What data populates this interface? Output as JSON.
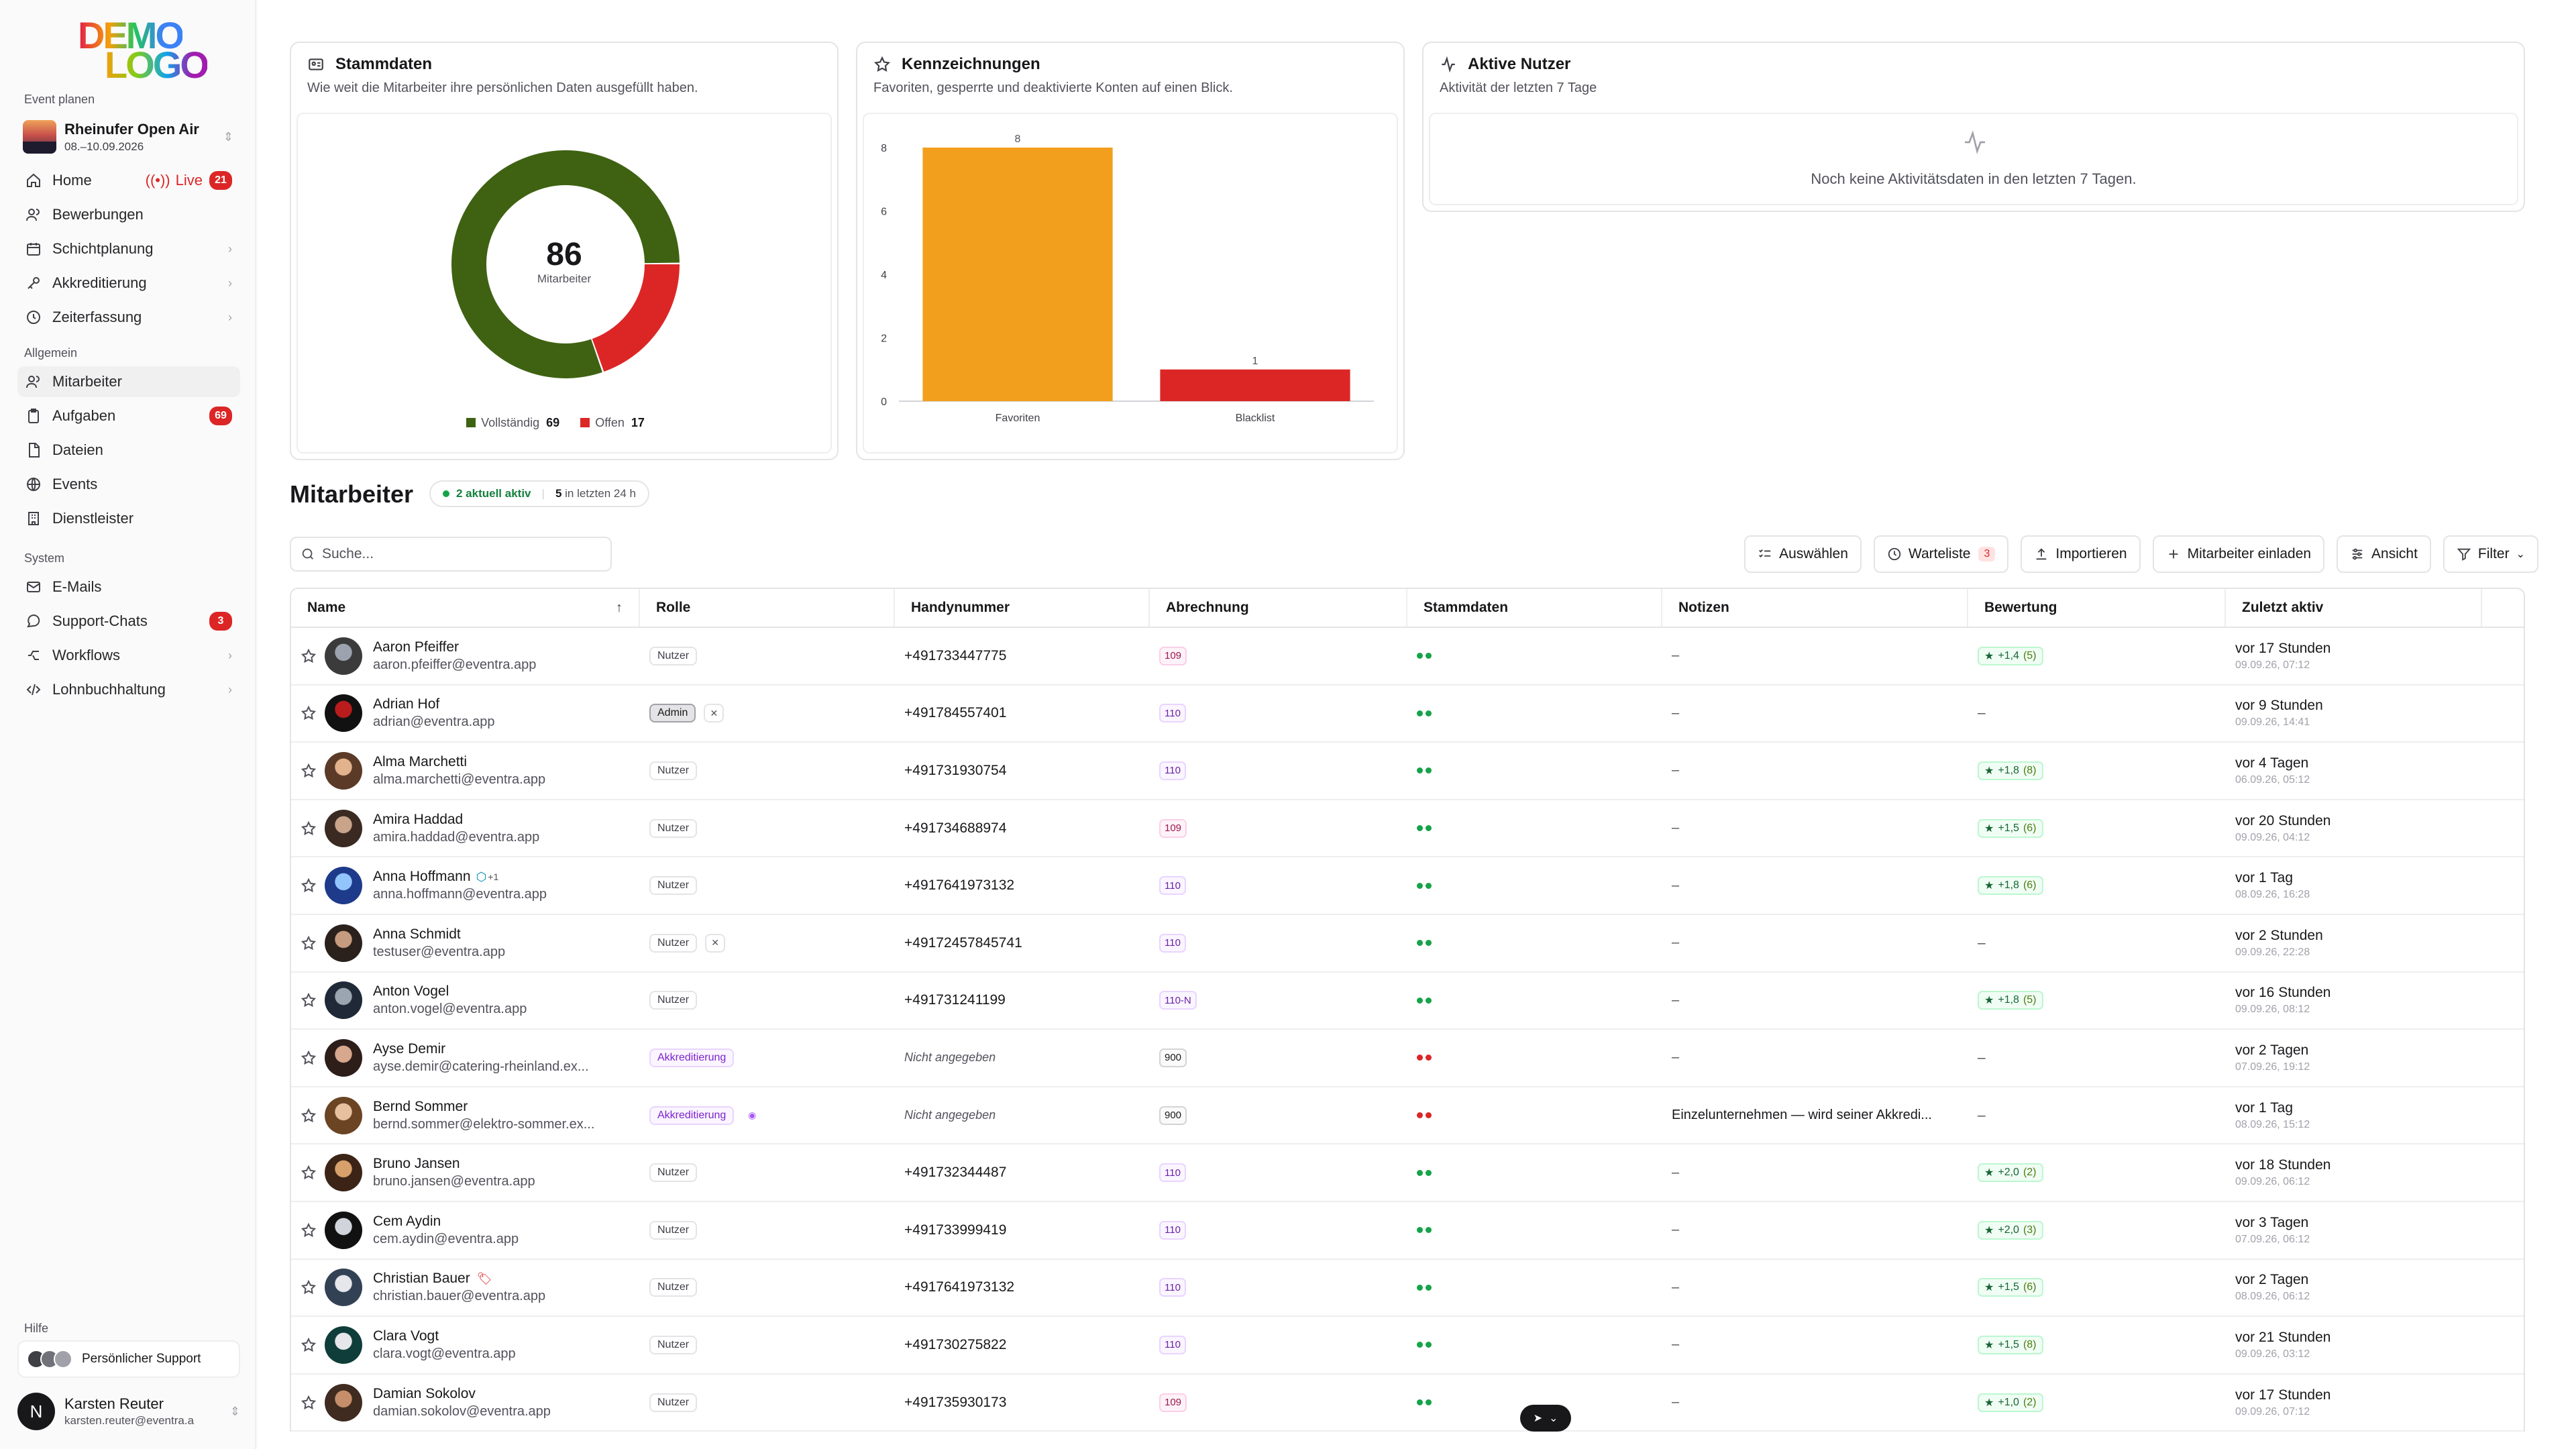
{
  "sidebar": {
    "logo_line1": "DEMO",
    "logo_line2": "LOGO",
    "section_event": "Event planen",
    "event": {
      "name": "Rheinufer Open Air",
      "date": "08.–10.09.2026"
    },
    "nav_top": [
      {
        "label": "Home",
        "icon": "home-icon",
        "live": "Live",
        "badge": "21"
      },
      {
        "label": "Bewerbungen",
        "icon": "users-icon"
      },
      {
        "label": "Schichtplanung",
        "icon": "calendar-icon",
        "chevron": true
      },
      {
        "label": "Akkreditierung",
        "icon": "key-icon",
        "chevron": true
      },
      {
        "label": "Zeiterfassung",
        "icon": "clock-icon",
        "chevron": true
      }
    ],
    "section_general": "Allgemein",
    "nav_general": [
      {
        "label": "Mitarbeiter",
        "icon": "users-icon",
        "active": true
      },
      {
        "label": "Aufgaben",
        "icon": "clipboard-icon",
        "badge": "69"
      },
      {
        "label": "Dateien",
        "icon": "file-icon"
      },
      {
        "label": "Events",
        "icon": "globe-icon"
      },
      {
        "label": "Dienstleister",
        "icon": "building-icon"
      }
    ],
    "section_system": "System",
    "nav_system": [
      {
        "label": "E-Mails",
        "icon": "mail-icon"
      },
      {
        "label": "Support-Chats",
        "icon": "chat-icon",
        "badge": "3"
      },
      {
        "label": "Workflows",
        "icon": "workflow-icon",
        "chevron": true
      },
      {
        "label": "Lohnbuchhaltung",
        "icon": "code-icon",
        "chevron": true
      }
    ],
    "section_help": "Hilfe",
    "support_label": "Persönlicher Support",
    "user": {
      "initial": "N",
      "name": "Karsten Reuter",
      "email": "karsten.reuter@eventra.a"
    }
  },
  "cards": {
    "stammdaten": {
      "title": "Stammdaten",
      "subtitle": "Wie weit die Mitarbeiter ihre persönlichen Daten ausgefüllt haben.",
      "total": "86",
      "total_label": "Mitarbeiter",
      "legend": [
        {
          "label": "Vollständig",
          "value": "69",
          "color": "#3f6212"
        },
        {
          "label": "Offen",
          "value": "17",
          "color": "#dc2626"
        }
      ]
    },
    "kennzeichnungen": {
      "title": "Kennzeichnungen",
      "subtitle": "Favoriten, gesperrte und deaktivierte Konten auf einen Blick."
    },
    "aktive": {
      "title": "Aktive Nutzer",
      "subtitle": "Aktivität der letzten 7 Tage",
      "empty": "Noch keine Aktivitätsdaten in den letzten 7 Tagen."
    }
  },
  "chart_data": [
    {
      "type": "pie",
      "categories": [
        "Vollständig",
        "Offen"
      ],
      "values": [
        69,
        17
      ],
      "colors": [
        "#3f6212",
        "#dc2626"
      ],
      "center_value": "86",
      "center_label": "Mitarbeiter"
    },
    {
      "type": "bar",
      "categories": [
        "Favoriten",
        "Blacklist"
      ],
      "values": [
        8,
        1
      ],
      "colors": [
        "#f29f1d",
        "#dc2626"
      ],
      "yticks": [
        0,
        2,
        4,
        6,
        8
      ],
      "ylim": [
        0,
        8
      ],
      "grid": false
    }
  ],
  "list": {
    "title": "Mitarbeiter",
    "active_now": "2 aktuell aktiv",
    "active_24_num": "5",
    "active_24_label": "in letzten 24 h",
    "search_placeholder": "Suche...",
    "toolbar": {
      "select": "Auswählen",
      "waitlist": "Warteliste",
      "waitlist_count": "3",
      "import": "Importieren",
      "invite": "Mitarbeiter einladen",
      "view": "Ansicht",
      "filter": "Filter"
    },
    "columns": [
      "Name",
      "Rolle",
      "Handynummer",
      "Abrechnung",
      "Stammdaten",
      "Notizen",
      "Bewertung",
      "Zuletzt aktiv"
    ],
    "rows": [
      {
        "name": "Aaron Pfeiffer",
        "email": "aaron.pfeiffer@eventra.app",
        "role": "Nutzer",
        "phone": "+491733447775",
        "bill": "109",
        "stamm": "ok",
        "notes": "–",
        "rating": "+1,4",
        "rating_count": "(5)",
        "last": "vor 17 Stunden",
        "last_date": "09.09.26, 07:12"
      },
      {
        "name": "Adrian Hof",
        "email": "adrian@eventra.app",
        "role": "Admin",
        "role_extra": "tool",
        "phone": "+491784557401",
        "bill": "110",
        "stamm": "ok",
        "notes": "–",
        "rating": "",
        "rating_dash": "–",
        "last": "vor 9 Stunden",
        "last_date": "09.09.26, 14:41"
      },
      {
        "name": "Alma Marchetti",
        "email": "alma.marchetti@eventra.app",
        "role": "Nutzer",
        "phone": "+491731930754",
        "bill": "110",
        "stamm": "ok",
        "notes": "–",
        "rating": "+1,8",
        "rating_count": "(8)",
        "last": "vor 4 Tagen",
        "last_date": "06.09.26, 05:12"
      },
      {
        "name": "Amira Haddad",
        "email": "amira.haddad@eventra.app",
        "role": "Nutzer",
        "phone": "+4917346889​74",
        "bill": "109",
        "stamm": "ok",
        "notes": "–",
        "rating": "+1,5",
        "rating_count": "(6)",
        "last": "vor 20 Stunden",
        "last_date": "09.09.26, 04:12"
      },
      {
        "name": "Anna Hoffmann",
        "name_extra": "+1",
        "email": "anna.hoffmann@eventra.app",
        "role": "Nutzer",
        "phone": "+4917641973132",
        "bill": "110",
        "stamm": "ok",
        "notes": "–",
        "rating": "+1,8",
        "rating_count": "(6)",
        "last": "vor 1 Tag",
        "last_date": "08.09.26, 16:28"
      },
      {
        "name": "Anna Schmidt",
        "email": "testuser@eventra.app",
        "role": "Nutzer",
        "role_extra": "tool",
        "phone": "+4917245784​5741",
        "bill": "110",
        "stamm": "ok",
        "notes": "–",
        "rating": "",
        "rating_dash": "–",
        "last": "vor 2 Stunden",
        "last_date": "09.09.26, 22:28"
      },
      {
        "name": "Anton Vogel",
        "email": "anton.vogel@eventra.app",
        "role": "Nutzer",
        "phone": "+491731241199",
        "bill": "110-N",
        "stamm": "ok",
        "notes": "–",
        "rating": "+1,8",
        "rating_count": "(5)",
        "last": "vor 16 Stunden",
        "last_date": "09.09.26, 08:12"
      },
      {
        "name": "Ayse Demir",
        "email": "ayse.demir@catering-rheinland.ex...",
        "role": "Akkreditierung",
        "phone_missing": "Nicht angegeben",
        "bill": "900",
        "stamm": "open",
        "notes": "–",
        "rating": "",
        "rating_dash": "–",
        "last": "vor 2 Tagen",
        "last_date": "07.09.26, 19:12"
      },
      {
        "name": "Bernd Sommer",
        "email": "bernd.sommer@elektro-sommer.ex...",
        "role": "Akkreditierung",
        "role_extra": "flag",
        "phone_missing": "Nicht angegeben",
        "bill": "900",
        "stamm": "open",
        "notes": "Einzelunternehmen — wird seiner Akkredi...",
        "rating": "",
        "rating_dash": "–",
        "last": "vor 1 Tag",
        "last_date": "08.09.26, 15:12"
      },
      {
        "name": "Bruno Jansen",
        "email": "bruno.jansen@eventra.app",
        "role": "Nutzer",
        "phone": "+491732344487",
        "bill": "110",
        "stamm": "ok",
        "notes": "–",
        "rating": "+2,0",
        "rating_count": "(2)",
        "last": "vor 18 Stunden",
        "last_date": "09.09.26, 06:12"
      },
      {
        "name": "Cem Aydin",
        "email": "cem.aydin@eventra.app",
        "role": "Nutzer",
        "phone": "+491733999419",
        "bill": "110",
        "stamm": "ok",
        "notes": "–",
        "rating": "+2,0",
        "rating_count": "(3)",
        "last": "vor 3 Tagen",
        "last_date": "07.09.26, 06:12"
      },
      {
        "name": "Christian Bauer",
        "name_extra": "tag",
        "email": "christian.bauer@eventra.app",
        "role": "Nutzer",
        "phone": "+4917641973132",
        "bill": "110",
        "stamm": "ok",
        "notes": "–",
        "rating": "+1,5",
        "rating_count": "(6)",
        "last": "vor 2 Tagen",
        "last_date": "08.09.26, 06:12"
      },
      {
        "name": "Clara Vogt",
        "email": "clara.vogt@eventra.app",
        "role": "Nutzer",
        "phone": "+491730275822",
        "bill": "110",
        "stamm": "ok",
        "notes": "–",
        "rating": "+1,5",
        "rating_count": "(8)",
        "last": "vor 21 Stunden",
        "last_date": "09.09.26, 03:12"
      },
      {
        "name": "Damian Sokolov",
        "email": "damian.sokolov@eventra.app",
        "role": "Nutzer",
        "phone": "+491735930173",
        "bill": "109",
        "stamm": "ok",
        "notes": "–",
        "rating": "+1,0",
        "rating_count": "(2)",
        "last": "vor 17 Stunden",
        "last_date": "09.09.26, 07:12"
      }
    ]
  }
}
